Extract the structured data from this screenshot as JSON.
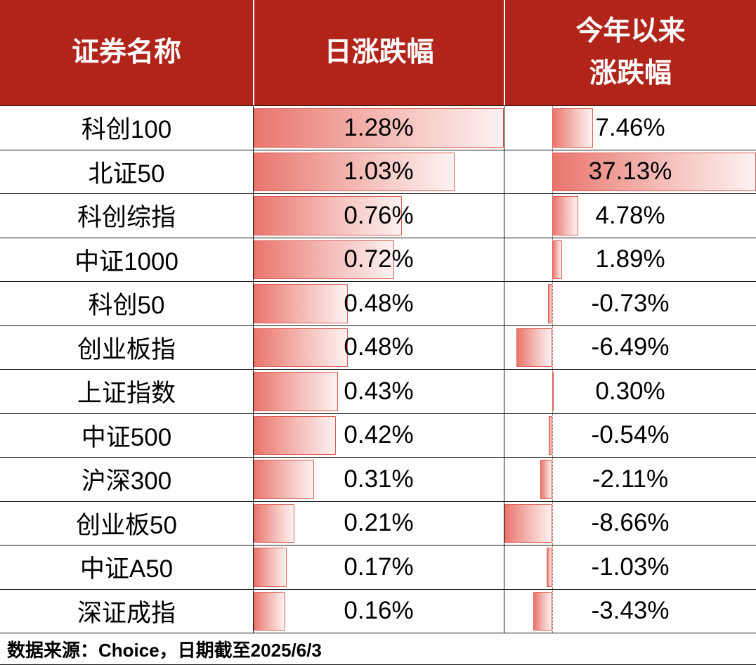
{
  "header": {
    "col_name": "证券名称",
    "col_daily": "日涨跌幅",
    "col_ytd_line1": "今年以来",
    "col_ytd_line2": "涨跌幅"
  },
  "footer": {
    "text": "数据来源：Choice，日期截至2025/6/3"
  },
  "colors": {
    "header_bg": "#b1241a",
    "bar_solid": "#e9766d",
    "bar_fade": "#fdf2f1",
    "bar_border": "#dd5e53",
    "grid_line": "#121212"
  },
  "chart_data": {
    "type": "table",
    "title": "",
    "columns": [
      "证券名称",
      "日涨跌幅",
      "今年以来涨跌幅"
    ],
    "rows": [
      {
        "name": "科创100",
        "daily": 1.28,
        "daily_label": "1.28%",
        "ytd": 7.46,
        "ytd_label": "7.46%"
      },
      {
        "name": "北证50",
        "daily": 1.03,
        "daily_label": "1.03%",
        "ytd": 37.13,
        "ytd_label": "37.13%"
      },
      {
        "name": "科创综指",
        "daily": 0.76,
        "daily_label": "0.76%",
        "ytd": 4.78,
        "ytd_label": "4.78%"
      },
      {
        "name": "中证1000",
        "daily": 0.72,
        "daily_label": "0.72%",
        "ytd": 1.89,
        "ytd_label": "1.89%"
      },
      {
        "name": "科创50",
        "daily": 0.48,
        "daily_label": "0.48%",
        "ytd": -0.73,
        "ytd_label": "-0.73%"
      },
      {
        "name": "创业板指",
        "daily": 0.48,
        "daily_label": "0.48%",
        "ytd": -6.49,
        "ytd_label": "-6.49%"
      },
      {
        "name": "上证指数",
        "daily": 0.43,
        "daily_label": "0.43%",
        "ytd": 0.3,
        "ytd_label": "0.30%"
      },
      {
        "name": "中证500",
        "daily": 0.42,
        "daily_label": "0.42%",
        "ytd": -0.54,
        "ytd_label": "-0.54%"
      },
      {
        "name": "沪深300",
        "daily": 0.31,
        "daily_label": "0.31%",
        "ytd": -2.11,
        "ytd_label": "-2.11%"
      },
      {
        "name": "创业板50",
        "daily": 0.21,
        "daily_label": "0.21%",
        "ytd": -8.66,
        "ytd_label": "-8.66%"
      },
      {
        "name": "中证A50",
        "daily": 0.17,
        "daily_label": "0.17%",
        "ytd": -1.03,
        "ytd_label": "-1.03%"
      },
      {
        "name": "深证成指",
        "daily": 0.16,
        "daily_label": "0.16%",
        "ytd": -3.43,
        "ytd_label": "-3.43%"
      }
    ],
    "daily_bar_scale": {
      "min": 0,
      "max": 1.28
    },
    "ytd_bar_scale": {
      "min": -8.66,
      "max": 37.13
    },
    "bar_direction": "daily bars grow right from cell left edge; ytd bars grow from a zero axis, negatives leftward",
    "source_note": "数据来源：Choice，日期截至2025/6/3"
  }
}
